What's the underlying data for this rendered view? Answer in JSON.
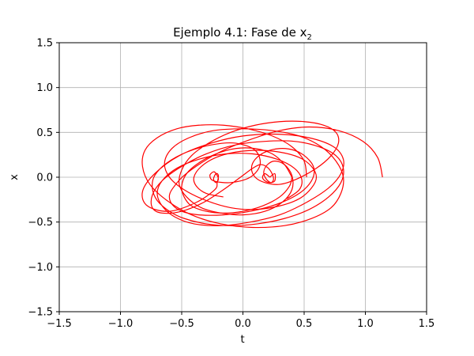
{
  "chart_data": {
    "type": "line",
    "title": "Ejemplo 4.1: Fase de x",
    "title_subscript": "2",
    "xlabel": "t",
    "ylabel": "x",
    "xlim": [
      -1.5,
      1.5
    ],
    "ylim": [
      -1.5,
      1.5
    ],
    "xticks": [
      -1.5,
      -1.0,
      -0.5,
      0.0,
      0.5,
      1.0,
      1.5
    ],
    "yticks": [
      -1.5,
      -1.0,
      -0.5,
      0.0,
      0.5,
      1.0,
      1.5
    ],
    "xtick_labels": [
      "−1.5",
      "−1.0",
      "−0.5",
      "0.0",
      "0.5",
      "1.0",
      "1.5"
    ],
    "ytick_labels": [
      "−1.5",
      "−1.0",
      "−0.5",
      "0.0",
      "0.5",
      "1.0",
      "1.5"
    ],
    "grid": true,
    "line_color": "#ff0000",
    "grid_color": "#b0b0b0",
    "series": [
      {
        "x": [
          1.14,
          1.1,
          0.98,
          0.78,
          0.54,
          0.3,
          0.06,
          -0.16,
          -0.34,
          -0.48,
          -0.56,
          -0.6,
          -0.58,
          -0.5,
          -0.36,
          -0.16,
          0.06,
          0.28,
          0.46,
          0.56,
          0.58,
          0.52,
          0.42,
          0.3,
          0.18,
          0.1,
          0.07,
          0.1,
          0.18,
          0.3,
          0.44,
          0.6,
          0.72,
          0.78,
          0.76,
          0.66,
          0.5,
          0.3,
          0.1,
          -0.1,
          -0.28,
          -0.42,
          -0.5,
          -0.52,
          -0.46,
          -0.34,
          -0.18,
          0.0,
          0.18,
          0.32,
          0.4,
          0.4,
          0.34,
          0.26,
          0.2,
          0.17,
          0.19,
          0.23,
          0.25,
          0.23,
          0.19,
          0.14,
          0.08,
          -0.02,
          -0.16,
          -0.32,
          -0.5,
          -0.66,
          -0.74,
          -0.74,
          -0.66,
          -0.5,
          -0.3,
          -0.06,
          0.18,
          0.42,
          0.62,
          0.76,
          0.82,
          0.8,
          0.7,
          0.54,
          0.34,
          0.12,
          -0.1,
          -0.3,
          -0.48,
          -0.6,
          -0.7,
          -0.74,
          -0.72,
          -0.62,
          -0.46,
          -0.26,
          -0.06,
          0.1,
          0.14,
          0.06,
          -0.1,
          -0.24,
          -0.27,
          -0.24,
          -0.22,
          -0.2,
          -0.22,
          -0.24,
          -0.22,
          -0.2,
          -0.21,
          -0.23,
          -0.38,
          -0.6,
          -0.78,
          -0.82,
          -0.72,
          -0.52,
          -0.26,
          0.0,
          0.28,
          0.54,
          0.74,
          0.82,
          0.8,
          0.7,
          0.52,
          0.3,
          0.06,
          -0.18,
          -0.4,
          -0.56,
          -0.66,
          -0.7,
          -0.66,
          -0.54,
          -0.36,
          -0.14,
          0.08,
          0.28,
          0.42,
          0.48,
          0.46,
          0.36
        ],
        "y": [
          0.0,
          0.22,
          0.4,
          0.52,
          0.56,
          0.52,
          0.42,
          0.3,
          0.16,
          0.02,
          -0.1,
          -0.2,
          -0.3,
          -0.38,
          -0.42,
          -0.42,
          -0.38,
          -0.3,
          -0.18,
          -0.04,
          0.1,
          0.22,
          0.3,
          0.32,
          0.28,
          0.2,
          0.1,
          0.0,
          -0.06,
          -0.08,
          -0.02,
          0.1,
          0.24,
          0.38,
          0.5,
          0.58,
          0.62,
          0.62,
          0.58,
          0.5,
          0.38,
          0.24,
          0.08,
          -0.08,
          -0.22,
          -0.34,
          -0.4,
          -0.42,
          -0.38,
          -0.28,
          -0.14,
          0.02,
          0.14,
          0.18,
          0.14,
          0.06,
          -0.02,
          -0.06,
          -0.02,
          0.06,
          0.12,
          0.14,
          0.1,
          0.0,
          -0.14,
          -0.28,
          -0.38,
          -0.4,
          -0.34,
          -0.2,
          -0.04,
          0.12,
          0.26,
          0.36,
          0.4,
          0.4,
          0.34,
          0.24,
          0.1,
          -0.06,
          -0.22,
          -0.36,
          -0.46,
          -0.52,
          -0.54,
          -0.52,
          -0.46,
          -0.38,
          -0.26,
          -0.12,
          0.02,
          0.16,
          0.28,
          0.36,
          0.38,
          0.3,
          0.14,
          0.0,
          -0.06,
          -0.04,
          0.02,
          0.06,
          0.04,
          -0.02,
          -0.06,
          -0.02,
          0.04,
          0.02,
          -0.06,
          -0.14,
          -0.28,
          -0.38,
          -0.32,
          -0.16,
          0.04,
          0.24,
          0.38,
          0.46,
          0.48,
          0.44,
          0.34,
          0.2,
          0.04,
          -0.12,
          -0.28,
          -0.42,
          -0.5,
          -0.54,
          -0.52,
          -0.44,
          -0.32,
          -0.18,
          -0.04,
          0.1,
          0.2,
          0.26,
          0.26,
          0.2,
          0.1,
          -0.02,
          -0.14,
          -0.24
        ]
      },
      {
        "x": [
          0.52,
          0.5,
          0.4,
          0.24,
          0.04,
          -0.16,
          -0.36,
          -0.54,
          -0.7,
          -0.8,
          -0.82,
          -0.76,
          -0.62,
          -0.42,
          -0.18,
          0.08,
          0.34,
          0.56,
          0.72,
          0.8,
          0.82,
          0.76,
          0.64,
          0.46,
          0.24,
          0.0,
          -0.24,
          -0.44,
          -0.58,
          -0.64,
          -0.6,
          -0.48,
          -0.3,
          -0.1,
          0.1,
          0.3,
          0.46,
          0.56,
          0.6,
          0.56,
          0.46,
          0.3,
          0.12,
          -0.06,
          -0.22,
          -0.34,
          -0.4,
          -0.38,
          -0.3,
          -0.16
        ],
        "y": [
          0.0,
          0.18,
          0.34,
          0.46,
          0.54,
          0.58,
          0.58,
          0.54,
          0.44,
          0.3,
          0.12,
          -0.08,
          -0.26,
          -0.42,
          -0.52,
          -0.56,
          -0.54,
          -0.46,
          -0.34,
          -0.18,
          0.0,
          0.18,
          0.34,
          0.46,
          0.52,
          0.54,
          0.52,
          0.44,
          0.32,
          0.16,
          0.0,
          -0.14,
          -0.26,
          -0.34,
          -0.36,
          -0.32,
          -0.24,
          -0.12,
          0.0,
          0.12,
          0.22,
          0.28,
          0.3,
          0.28,
          0.22,
          0.12,
          0.0,
          -0.1,
          -0.18,
          -0.22
        ]
      },
      {
        "x": [
          0.4,
          0.38,
          0.3,
          0.16,
          0.0,
          -0.16,
          -0.3,
          -0.42,
          -0.48,
          -0.5,
          -0.46,
          -0.36,
          -0.22,
          -0.06,
          0.1,
          0.24,
          0.34,
          0.4
        ],
        "y": [
          0.0,
          -0.1,
          -0.22,
          -0.32,
          -0.38,
          -0.4,
          -0.38,
          -0.32,
          -0.22,
          -0.1,
          0.04,
          0.16,
          0.26,
          0.32,
          0.32,
          0.26,
          0.14,
          0.0
        ]
      },
      {
        "x": [
          0.22,
          0.26,
          0.26,
          0.22,
          0.18,
          0.16,
          0.18,
          0.22
        ],
        "y": [
          0.0,
          0.04,
          -0.04,
          -0.06,
          -0.04,
          0.0,
          0.04,
          0.0
        ]
      }
    ]
  }
}
